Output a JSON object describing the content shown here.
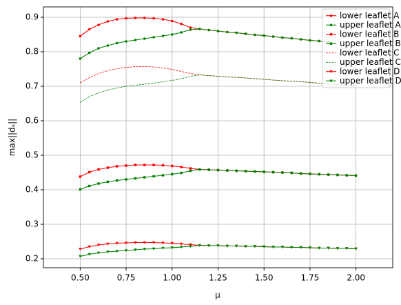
{
  "chart_data": {
    "type": "line",
    "x_label": "μ",
    "y_label": "max||dₛ||",
    "x": [
      0.5,
      0.55,
      0.6,
      0.65,
      0.7,
      0.75,
      0.8,
      0.85,
      0.9,
      0.95,
      1.0,
      1.05,
      1.1,
      1.15,
      1.2,
      1.25,
      1.3,
      1.35,
      1.4,
      1.45,
      1.5,
      1.55,
      1.6,
      1.65,
      1.7,
      1.75,
      1.8,
      1.85,
      1.9,
      1.95,
      2.0
    ],
    "xlim": [
      0.3,
      2.2
    ],
    "xticks": [
      {
        "value": 0.5,
        "label": "0.50"
      },
      0.75,
      {
        "value": 1.0,
        "label": "1.00"
      },
      1.25,
      {
        "value": 1.5,
        "label": "1.50"
      },
      1.75,
      {
        "value": 2.0,
        "label": "2.00"
      }
    ],
    "ylim": [
      0.174,
      0.93
    ],
    "yticks": [
      0.2,
      0.3,
      0.4,
      0.5,
      0.6,
      0.7,
      0.8,
      0.9
    ],
    "grid": true,
    "legend": "upper right",
    "series": [
      {
        "name": "lower leaflet A",
        "color": "#ff0000",
        "linestyle": "solid",
        "marker": "circle",
        "values": [
          0.845,
          0.865,
          0.878,
          0.888,
          0.894,
          0.897,
          0.898,
          0.898,
          0.897,
          0.894,
          0.889,
          0.881,
          0.87,
          0.866,
          0.863,
          0.86,
          0.857,
          0.855,
          0.852,
          0.849,
          0.847,
          0.844,
          0.841,
          0.839,
          0.836,
          0.833,
          0.831,
          0.828,
          null,
          null,
          null
        ]
      },
      {
        "name": "upper leaflet A",
        "color": "#008000",
        "linestyle": "solid",
        "marker": "circle",
        "values": [
          0.78,
          0.797,
          0.81,
          0.818,
          0.825,
          0.83,
          0.834,
          0.838,
          0.842,
          0.846,
          0.85,
          0.856,
          0.864,
          0.866,
          0.863,
          0.86,
          0.857,
          0.855,
          0.852,
          0.849,
          0.847,
          0.844,
          0.841,
          0.839,
          0.836,
          0.833,
          0.831,
          0.828,
          null,
          null,
          null
        ]
      },
      {
        "name": "lower leaflet B",
        "color": "#ff0000",
        "linestyle": "solid",
        "marker": "square",
        "values": [
          0.438,
          0.451,
          0.459,
          0.464,
          0.468,
          0.47,
          0.472,
          0.472,
          0.472,
          0.471,
          0.469,
          0.466,
          0.462,
          0.459,
          0.458,
          0.457,
          0.456,
          0.455,
          0.454,
          0.453,
          0.452,
          0.451,
          0.45,
          0.449,
          0.447,
          0.446,
          0.445,
          0.444,
          0.443,
          0.442,
          0.441
        ]
      },
      {
        "name": "upper leaflet B",
        "color": "#008000",
        "linestyle": "solid",
        "marker": "square",
        "values": [
          0.401,
          0.411,
          0.418,
          0.423,
          0.427,
          0.43,
          0.433,
          0.436,
          0.439,
          0.442,
          0.445,
          0.449,
          0.455,
          0.459,
          0.458,
          0.457,
          0.456,
          0.455,
          0.454,
          0.453,
          0.452,
          0.451,
          0.45,
          0.449,
          0.447,
          0.446,
          0.445,
          0.444,
          0.443,
          0.442,
          0.441
        ]
      },
      {
        "name": "lower leaflet C",
        "color": "#ff0000",
        "linestyle": "dashed",
        "values": [
          0.71,
          0.725,
          0.737,
          0.745,
          0.751,
          0.755,
          0.757,
          0.757,
          0.756,
          0.753,
          0.749,
          0.743,
          0.737,
          0.733,
          0.731,
          0.729,
          0.727,
          0.726,
          0.724,
          0.722,
          0.72,
          0.718,
          0.716,
          0.715,
          0.713,
          0.711,
          0.709,
          0.707,
          0.705,
          0.704,
          0.702
        ]
      },
      {
        "name": "upper leaflet C",
        "color": "#008000",
        "linestyle": "dashed",
        "values": [
          0.653,
          0.67,
          0.681,
          0.689,
          0.695,
          0.7,
          0.703,
          0.706,
          0.709,
          0.713,
          0.717,
          0.722,
          0.729,
          0.733,
          0.731,
          0.729,
          0.727,
          0.726,
          0.724,
          0.722,
          0.72,
          0.718,
          0.716,
          0.715,
          0.713,
          0.711,
          0.709,
          0.707,
          0.705,
          0.704,
          0.702
        ]
      },
      {
        "name": "lower leaflet D",
        "color": "#ff0000",
        "linestyle": "solid",
        "marker": "triangle",
        "values": [
          0.228,
          0.235,
          0.24,
          0.243,
          0.245,
          0.246,
          0.247,
          0.247,
          0.247,
          0.246,
          0.245,
          0.243,
          0.241,
          0.239,
          0.238,
          0.238,
          0.237,
          0.237,
          0.236,
          0.236,
          0.235,
          0.234,
          0.234,
          0.233,
          0.233,
          0.232,
          0.231,
          0.231,
          0.23,
          0.23,
          0.229
        ]
      },
      {
        "name": "upper leaflet D",
        "color": "#008000",
        "linestyle": "solid",
        "marker": "triangle",
        "values": [
          0.207,
          0.213,
          0.217,
          0.22,
          0.222,
          0.224,
          0.226,
          0.228,
          0.229,
          0.231,
          0.232,
          0.234,
          0.236,
          0.239,
          0.238,
          0.238,
          0.237,
          0.237,
          0.236,
          0.236,
          0.235,
          0.234,
          0.234,
          0.233,
          0.233,
          0.232,
          0.231,
          0.231,
          0.23,
          0.23,
          0.229
        ]
      }
    ]
  }
}
